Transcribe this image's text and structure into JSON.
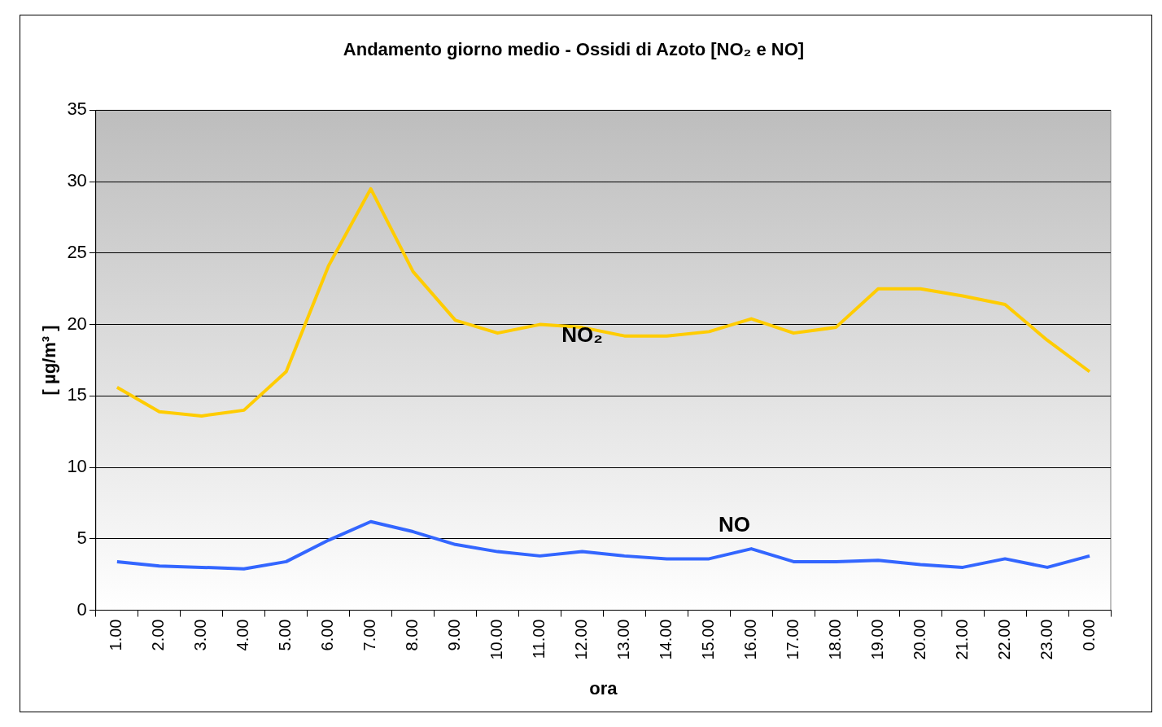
{
  "chart_data": {
    "type": "line",
    "title": "Andamento giorno medio - Ossidi di Azoto [NO₂ e NO]",
    "xlabel": "ora",
    "ylabel": "[ µg/m³ ]",
    "categories": [
      "1.00",
      "2.00",
      "3.00",
      "4.00",
      "5.00",
      "6.00",
      "7.00",
      "8.00",
      "9.00",
      "10.00",
      "11.00",
      "12.00",
      "13.00",
      "14.00",
      "15.00",
      "16.00",
      "17.00",
      "18.00",
      "19.00",
      "20.00",
      "21.00",
      "22.00",
      "23.00",
      "0.00"
    ],
    "series": [
      {
        "name": "NO₂",
        "color": "#ffcc00",
        "values": [
          15.6,
          13.9,
          13.6,
          14.0,
          16.7,
          24.1,
          29.5,
          23.7,
          20.3,
          19.4,
          20.0,
          19.8,
          19.2,
          19.2,
          19.5,
          20.4,
          19.4,
          19.8,
          22.5,
          22.5,
          22.0,
          21.4,
          18.9,
          16.7
        ]
      },
      {
        "name": "NO",
        "color": "#3366ff",
        "values": [
          3.4,
          3.1,
          3.0,
          2.9,
          3.4,
          4.9,
          6.2,
          5.5,
          4.6,
          4.1,
          3.8,
          4.1,
          3.8,
          3.6,
          3.6,
          4.3,
          3.4,
          3.4,
          3.5,
          3.2,
          3.0,
          3.6,
          3.0,
          3.8
        ]
      }
    ],
    "ylim": [
      0,
      35
    ],
    "yticks": [
      0,
      5,
      10,
      15,
      20,
      25,
      30,
      35
    ],
    "grid": "y",
    "legend": false,
    "marker": "none",
    "line_style": "solid"
  }
}
